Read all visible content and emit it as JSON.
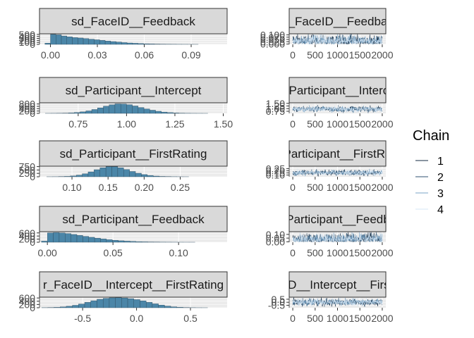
{
  "chart_data": [
    {
      "type": "histogram",
      "title": "sd_FaceID__Feedback",
      "x_ticks": [
        0.0,
        0.03,
        0.06,
        0.09
      ],
      "x_tick_labels": [
        "0.00",
        "0.03",
        "0.06",
        "0.09"
      ],
      "y_ticks": [
        0,
        100,
        200,
        300,
        400,
        500
      ],
      "y_tick_labels": [
        "0",
        "100",
        "200",
        "300",
        "400",
        "500"
      ],
      "xlim": [
        -0.007,
        0.113
      ],
      "ylim": [
        0,
        530
      ],
      "bins": {
        "start": -0.0035,
        "width": 0.0035,
        "counts": [
          60,
          500,
          480,
          420,
          380,
          340,
          320,
          290,
          260,
          230,
          200,
          170,
          140,
          115,
          90,
          70,
          55,
          40,
          30,
          22,
          15,
          10,
          7,
          5,
          3,
          2,
          1,
          1,
          0,
          0
        ]
      },
      "bar_color": "#4b86a8"
    },
    {
      "type": "histogram",
      "title": "sd_Participant__Intercept",
      "x_ticks": [
        0.75,
        1.0,
        1.25,
        1.5
      ],
      "x_tick_labels": [
        "0.75",
        "1.00",
        "1.25",
        "1.50"
      ],
      "y_ticks": [
        0,
        200,
        400,
        600,
        800
      ],
      "y_tick_labels": [
        "0",
        "200",
        "400",
        "600",
        "800"
      ],
      "xlim": [
        0.55,
        1.52
      ],
      "ylim": [
        0,
        900
      ],
      "bins": {
        "start": 0.58,
        "width": 0.03,
        "counts": [
          2,
          5,
          10,
          20,
          40,
          75,
          130,
          210,
          330,
          470,
          610,
          730,
          810,
          800,
          740,
          630,
          500,
          380,
          270,
          180,
          110,
          65,
          35,
          18,
          8,
          4,
          2,
          1,
          0,
          0
        ]
      },
      "bar_color": "#4b86a8"
    },
    {
      "type": "histogram",
      "title": "sd_Participant__FirstRating",
      "x_ticks": [
        0.1,
        0.15,
        0.2,
        0.25
      ],
      "x_tick_labels": [
        "0.10",
        "0.15",
        "0.20",
        "0.25"
      ],
      "y_ticks": [
        0,
        250,
        500,
        750
      ],
      "y_tick_labels": [
        "0",
        "250",
        "500",
        "750"
      ],
      "xlim": [
        0.055,
        0.315
      ],
      "ylim": [
        0,
        780
      ],
      "bins": {
        "start": 0.065,
        "width": 0.0082,
        "counts": [
          2,
          5,
          12,
          28,
          60,
          120,
          220,
          360,
          520,
          660,
          750,
          740,
          660,
          530,
          390,
          260,
          160,
          95,
          50,
          25,
          12,
          6,
          3,
          1,
          0,
          0,
          0,
          0,
          0,
          0
        ]
      },
      "bar_color": "#4b86a8"
    },
    {
      "type": "histogram",
      "title": "sd_Participant__Feedback",
      "x_ticks": [
        0.0,
        0.05,
        0.1
      ],
      "x_tick_labels": [
        "0.00",
        "0.05",
        "0.10"
      ],
      "y_ticks": [
        0,
        200,
        400,
        600
      ],
      "y_tick_labels": [
        "0",
        "200",
        "400",
        "600"
      ],
      "xlim": [
        -0.006,
        0.137
      ],
      "ylim": [
        0,
        680
      ],
      "bins": {
        "start": -0.0045,
        "width": 0.0045,
        "counts": [
          70,
          600,
          620,
          600,
          560,
          500,
          440,
          380,
          320,
          260,
          210,
          165,
          125,
          95,
          70,
          50,
          35,
          25,
          17,
          11,
          7,
          5,
          3,
          2,
          1,
          1,
          0,
          0,
          0,
          0
        ]
      },
      "bar_color": "#4b86a8"
    },
    {
      "type": "histogram",
      "title": "r_FaceID__Intercept__FirstRating",
      "x_ticks": [
        -0.5,
        0.0,
        0.5
      ],
      "x_tick_labels": [
        "-0.5",
        "0.0",
        "0.5"
      ],
      "y_ticks": [
        0,
        200,
        400,
        600
      ],
      "y_tick_labels": [
        "0",
        "200",
        "400",
        "600"
      ],
      "xlim": [
        -0.9,
        0.84
      ],
      "ylim": [
        0,
        650
      ],
      "bins": {
        "start": -0.88,
        "width": 0.057,
        "counts": [
          5,
          12,
          25,
          50,
          90,
          150,
          230,
          330,
          430,
          520,
          580,
          610,
          615,
          600,
          560,
          500,
          420,
          330,
          240,
          160,
          100,
          55,
          28,
          12,
          5,
          2,
          1,
          0,
          0,
          0
        ]
      },
      "bar_color": "#4b86a8"
    },
    {
      "type": "line",
      "title": "sd_FaceID__Feedback",
      "x_ticks": [
        0,
        500,
        1000,
        1500,
        2000
      ],
      "x_tick_labels": [
        "0",
        "500",
        "1000",
        "1500",
        "2000"
      ],
      "y_ticks": [
        0.0,
        0.025,
        0.05,
        0.075,
        0.1
      ],
      "y_tick_labels": [
        "0.000",
        "0.025",
        "0.050",
        "0.075",
        "0.100"
      ],
      "xlim": [
        -80,
        2080
      ],
      "ylim": [
        -0.004,
        0.112
      ],
      "trace": {
        "center": 0.03,
        "spread": 0.022,
        "skew": 1.6,
        "floor": 0.0,
        "ceiling": 0.108
      },
      "series": [
        {
          "name": "1",
          "color": "#132b43"
        },
        {
          "name": "2",
          "color": "#2d5272"
        },
        {
          "name": "3",
          "color": "#7aa5c7"
        },
        {
          "name": "4",
          "color": "#d6e7f5"
        }
      ]
    },
    {
      "type": "line",
      "title": "sd_Participant__Intercept",
      "x_ticks": [
        0,
        500,
        1000,
        1500,
        2000
      ],
      "x_tick_labels": [
        "0",
        "500",
        "1000",
        "1500",
        "2000"
      ],
      "y_ticks": [
        0.75,
        1.0,
        1.25,
        1.5
      ],
      "y_tick_labels": [
        "0.75",
        "1.00",
        "1.25",
        "1.50"
      ],
      "xlim": [
        -80,
        2080
      ],
      "ylim": [
        0.55,
        1.55
      ],
      "trace": {
        "center": 0.96,
        "spread": 0.12,
        "skew": 1.0,
        "floor": 0.58,
        "ceiling": 1.5
      },
      "series": [
        {
          "name": "1",
          "color": "#132b43"
        },
        {
          "name": "2",
          "color": "#2d5272"
        },
        {
          "name": "3",
          "color": "#7aa5c7"
        },
        {
          "name": "4",
          "color": "#d6e7f5"
        }
      ]
    },
    {
      "type": "line",
      "title": "sd_Participant__FirstRating",
      "x_ticks": [
        0,
        500,
        1000,
        1500,
        2000
      ],
      "x_tick_labels": [
        "0",
        "500",
        "1000",
        "1500",
        "2000"
      ],
      "y_ticks": [
        0.1,
        0.15,
        0.2,
        0.25
      ],
      "y_tick_labels": [
        "0.10",
        "0.15",
        "0.20",
        "0.25"
      ],
      "xlim": [
        -80,
        2080
      ],
      "ylim": [
        0.06,
        0.31
      ],
      "trace": {
        "center": 0.155,
        "spread": 0.03,
        "skew": 1.0,
        "floor": 0.07,
        "ceiling": 0.29
      },
      "series": [
        {
          "name": "1",
          "color": "#132b43"
        },
        {
          "name": "2",
          "color": "#2d5272"
        },
        {
          "name": "3",
          "color": "#7aa5c7"
        },
        {
          "name": "4",
          "color": "#d6e7f5"
        }
      ]
    },
    {
      "type": "line",
      "title": "sd_Participant__Feedback",
      "x_ticks": [
        0,
        500,
        1000,
        1500,
        2000
      ],
      "x_tick_labels": [
        "0",
        "500",
        "1000",
        "1500",
        "2000"
      ],
      "y_ticks": [
        0.0,
        0.05,
        0.1
      ],
      "y_tick_labels": [
        "0.00",
        "0.05",
        "0.10"
      ],
      "xlim": [
        -80,
        2080
      ],
      "ylim": [
        -0.006,
        0.137
      ],
      "trace": {
        "center": 0.03,
        "spread": 0.026,
        "skew": 1.6,
        "floor": 0.0,
        "ceiling": 0.13
      },
      "series": [
        {
          "name": "1",
          "color": "#132b43"
        },
        {
          "name": "2",
          "color": "#2d5272"
        },
        {
          "name": "3",
          "color": "#7aa5c7"
        },
        {
          "name": "4",
          "color": "#d6e7f5"
        }
      ]
    },
    {
      "type": "line",
      "title": "r_FaceID__Intercept__FirstRating",
      "x_ticks": [
        0,
        500,
        1000,
        1500,
        2000
      ],
      "x_tick_labels": [
        "0",
        "500",
        "1000",
        "1500",
        "2000"
      ],
      "y_ticks": [
        -0.5,
        0.0,
        0.5
      ],
      "y_tick_labels": [
        "-0.5",
        "0.0",
        "0.5"
      ],
      "xlim": [
        -80,
        2080
      ],
      "ylim": [
        -0.9,
        0.84
      ],
      "trace": {
        "center": 0.0,
        "spread": 0.27,
        "skew": 1.0,
        "floor": -0.88,
        "ceiling": 0.82
      },
      "series": [
        {
          "name": "1",
          "color": "#132b43"
        },
        {
          "name": "2",
          "color": "#2d5272"
        },
        {
          "name": "3",
          "color": "#7aa5c7"
        },
        {
          "name": "4",
          "color": "#d6e7f5"
        }
      ]
    }
  ],
  "legend": {
    "title": "Chain",
    "position": "right",
    "items": [
      {
        "label": "1",
        "color": "#132b43"
      },
      {
        "label": "2",
        "color": "#2d5272"
      },
      {
        "label": "3",
        "color": "#7aa5c7"
      },
      {
        "label": "4",
        "color": "#d6e7f5"
      }
    ]
  },
  "colors": {
    "strip_fill": "#d9d9d9",
    "panel_fill": "#ebebeb",
    "grid": "#ffffff",
    "hist_outline": "#2b4a5e"
  }
}
